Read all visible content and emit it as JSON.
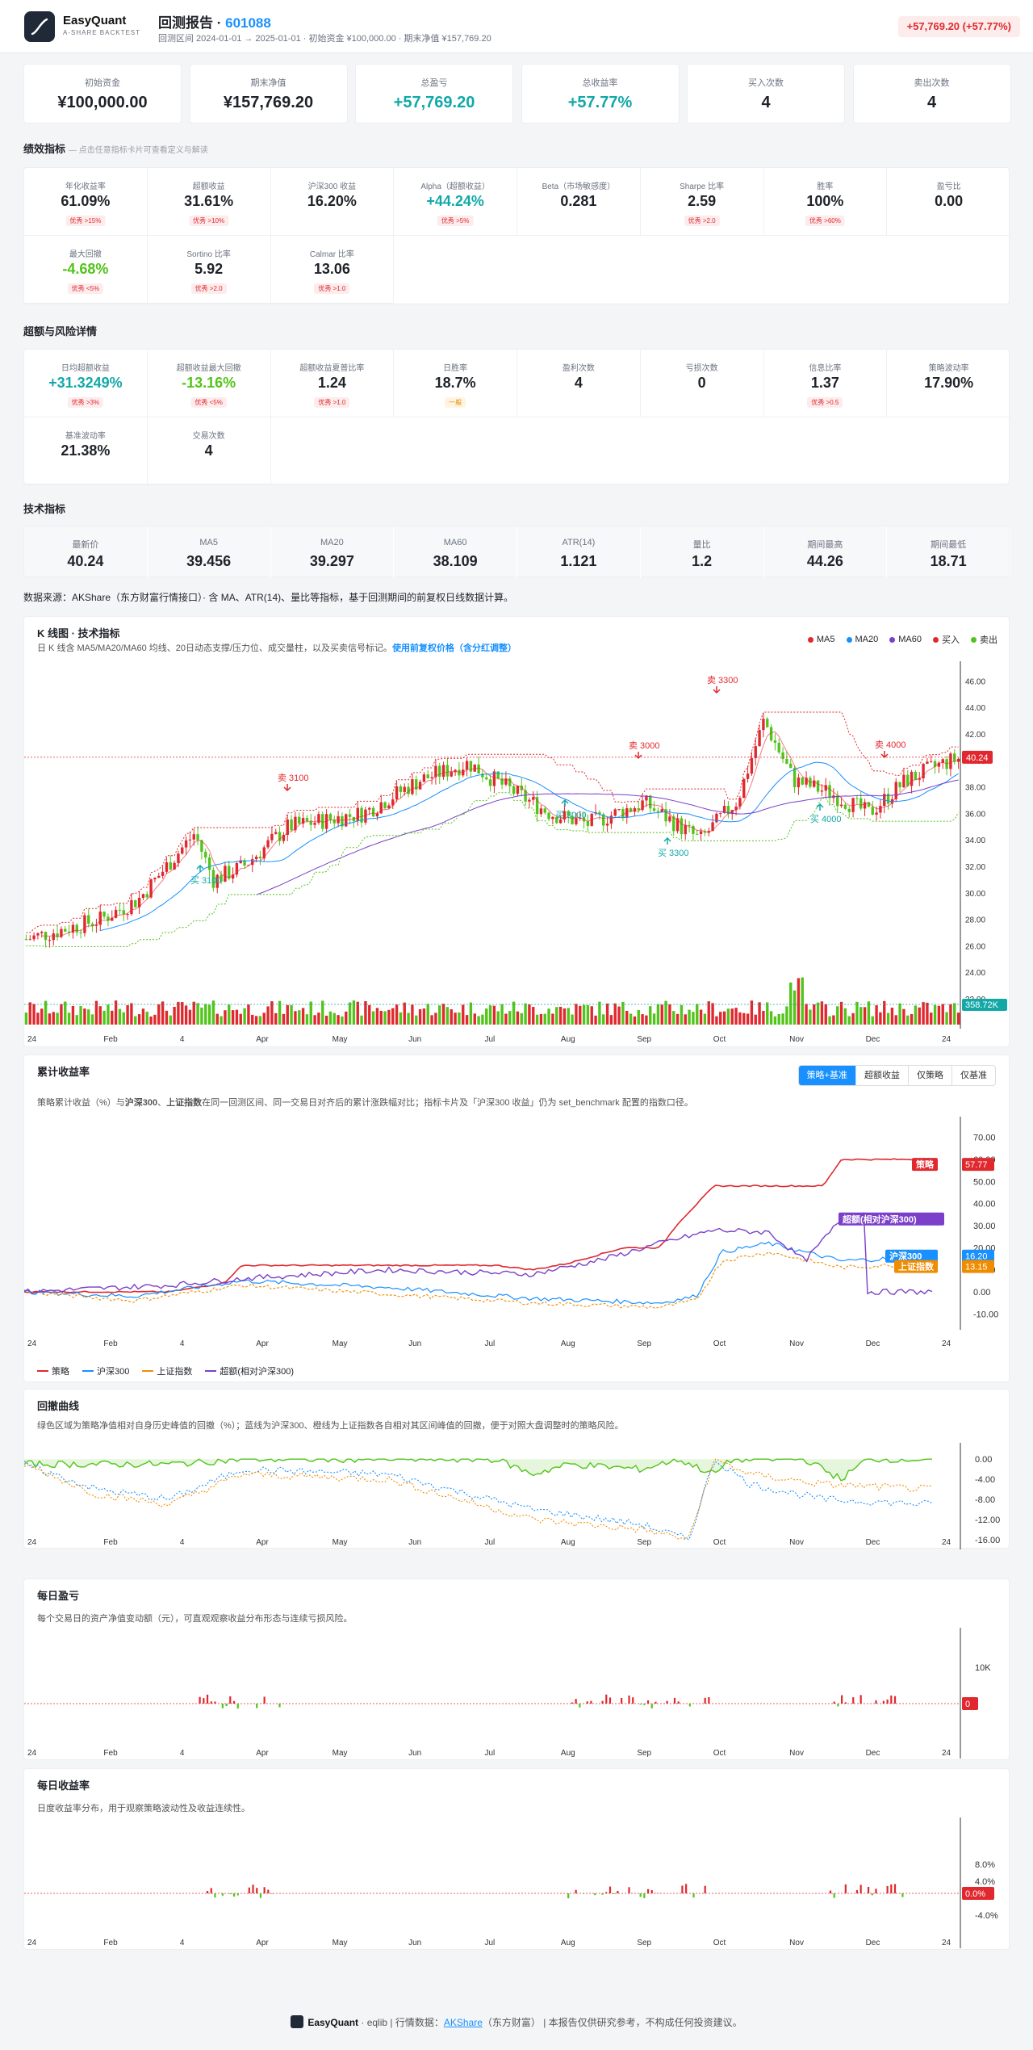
{
  "brand": {
    "name": "EasyQuant",
    "sub": "A-SHARE BACKTEST"
  },
  "report": {
    "title_prefix": "回测报告 · ",
    "code": "601088",
    "subtitle": "回测区间 2024-01-01 → 2025-01-01  ·  初始资金 ¥100,000.00  ·  期末净值 ¥157,769.20",
    "pnl_pill": "+57,769.20 (+57.77%)"
  },
  "summary": [
    {
      "label": "初始资金",
      "value": "¥100,000.00"
    },
    {
      "label": "期末净值",
      "value": "¥157,769.20"
    },
    {
      "label": "总盈亏",
      "value": "+57,769.20"
    },
    {
      "label": "总收益率",
      "value": "+57.77%"
    },
    {
      "label": "买入次数",
      "value": "4"
    },
    {
      "label": "卖出次数",
      "value": "4"
    }
  ],
  "perf": {
    "title": "绩效指标",
    "hint": "— 点击任意指标卡片可查看定义与解读",
    "items": [
      {
        "label": "年化收益率",
        "value": "61.09%",
        "badge": "优秀 >15%"
      },
      {
        "label": "超额收益",
        "value": "31.61%",
        "badge": "优秀 >10%"
      },
      {
        "label": "沪深300 收益",
        "value": "16.20%",
        "badge": ""
      },
      {
        "label": "Alpha（超额收益）",
        "value": "+44.24%",
        "badge": "优秀 >5%"
      },
      {
        "label": "Beta（市场敏感度）",
        "value": "0.281",
        "badge": ""
      },
      {
        "label": "Sharpe 比率",
        "value": "2.59",
        "badge": "优秀 >2.0"
      },
      {
        "label": "胜率",
        "value": "100%",
        "badge": "优秀 >60%"
      },
      {
        "label": "盈亏比",
        "value": "0.00",
        "badge": ""
      },
      {
        "label": "最大回撤",
        "value": "-4.68%",
        "badge": "优秀 <5%"
      },
      {
        "label": "Sortino 比率",
        "value": "5.92",
        "badge": "优秀 >2.0"
      },
      {
        "label": "Calmar 比率",
        "value": "13.06",
        "badge": "优秀 >1.0"
      }
    ]
  },
  "risk": {
    "title": "超额与风险详情",
    "items": [
      {
        "label": "日均超额收益",
        "value": "+31.3249%",
        "badge": "优秀 >3%"
      },
      {
        "label": "超额收益最大回撤",
        "value": "-13.16%",
        "badge": "优秀 <5%"
      },
      {
        "label": "超额收益夏普比率",
        "value": "1.24",
        "badge": "优秀 >1.0"
      },
      {
        "label": "日胜率",
        "value": "18.7%",
        "badge": "一般"
      },
      {
        "label": "盈利次数",
        "value": "4",
        "badge": ""
      },
      {
        "label": "亏损次数",
        "value": "0",
        "badge": ""
      },
      {
        "label": "信息比率",
        "value": "1.37",
        "badge": "优秀 >0.5"
      },
      {
        "label": "策略波动率",
        "value": "17.90%",
        "badge": ""
      },
      {
        "label": "基准波动率",
        "value": "21.38%",
        "badge": ""
      },
      {
        "label": "交易次数",
        "value": "4",
        "badge": ""
      }
    ]
  },
  "tech": {
    "title": "技术指标",
    "items": [
      {
        "label": "最新价",
        "value": "40.24"
      },
      {
        "label": "MA5",
        "value": "39.456"
      },
      {
        "label": "MA20",
        "value": "39.297"
      },
      {
        "label": "MA60",
        "value": "38.109"
      },
      {
        "label": "ATR(14)",
        "value": "1.121"
      },
      {
        "label": "量比",
        "value": "1.2"
      },
      {
        "label": "期间最高",
        "value": "44.26"
      },
      {
        "label": "期间最低",
        "value": "18.71"
      }
    ]
  },
  "source_note": "数据来源：AKShare（东方财富行情接口）· 含 MA、ATR(14)、量比等指标，基于回测期间的前复权日线数据计算。",
  "kline": {
    "title": "K 线图 · 技术指标",
    "desc": "日 K 线含 MA5/MA20/MA60 均线、20日动态支撑/压力位、成交量柱，以及买卖信号标记。",
    "desc_link": "使用前复权价格（含分红调整）",
    "legend": [
      {
        "name": "MA5",
        "color": "#e0282e"
      },
      {
        "name": "MA20",
        "color": "#1890ff"
      },
      {
        "name": "MA60",
        "color": "#7b3fc9"
      },
      {
        "name": "买入",
        "color": "#e0282e"
      },
      {
        "name": "卖出",
        "color": "#52c41a"
      }
    ],
    "yticks": [
      "46.00",
      "44.00",
      "42.00",
      "40.00",
      "38.00",
      "36.00",
      "34.00",
      "32.00",
      "30.00",
      "28.00",
      "26.00",
      "24.00",
      "22.00"
    ],
    "xticks": [
      "24",
      "Feb",
      "4",
      "Apr",
      "May",
      "Jun",
      "Jul",
      "Aug",
      "Sep",
      "Oct",
      "Nov",
      "Dec",
      "24"
    ],
    "last_price": "40.24",
    "last_volume": "358.72K",
    "signals": [
      {
        "text": "卖 3300",
        "kind": "sell"
      },
      {
        "text": "卖 3000",
        "kind": "sell"
      },
      {
        "text": "卖 3100",
        "kind": "sell"
      },
      {
        "text": "卖 4000",
        "kind": "sell"
      },
      {
        "text": "买 3100",
        "kind": "buy"
      },
      {
        "text": "买 3000",
        "kind": "buy"
      },
      {
        "text": "买 3300",
        "kind": "buy"
      },
      {
        "text": "买 4000",
        "kind": "buy"
      }
    ]
  },
  "cum": {
    "title": "累计收益率",
    "tabs": [
      "策略+基准",
      "超额收益",
      "仅策略",
      "仅基准"
    ],
    "desc_pre": "策略累计收益（%）与",
    "desc_b1": "沪深300",
    "desc_mid": "、",
    "desc_b2": "上证指数",
    "desc_post": "在同一回测区间、同一交易日对齐后的累计涨跌幅对比；指标卡片及「沪深300 收益」仍为 set_benchmark 配置的指数口径。",
    "yticks": [
      "70.00",
      "60.00",
      "50.00",
      "40.00",
      "30.00",
      "20.00",
      "10.00",
      "0.00",
      "-10.00"
    ],
    "xticks": [
      "24",
      "Feb",
      "4",
      "Apr",
      "May",
      "Jun",
      "Jul",
      "Aug",
      "Sep",
      "Oct",
      "Nov",
      "Dec",
      "24"
    ],
    "labels": [
      {
        "name": "策略",
        "value": "57.77",
        "color": "#e0282e"
      },
      {
        "name": "超额(相对沪深300)",
        "value": "",
        "color": "#7b3fc9"
      },
      {
        "name": "沪深300",
        "value": "16.20",
        "color": "#1890ff"
      },
      {
        "name": "上证指数",
        "value": "13.15",
        "color": "#f08c00"
      }
    ],
    "legend": [
      {
        "name": "策略",
        "color": "#e0282e"
      },
      {
        "name": "沪深300",
        "color": "#1890ff"
      },
      {
        "name": "上证指数",
        "color": "#f08c00"
      },
      {
        "name": "超额(相对沪深300)",
        "color": "#7b3fc9"
      }
    ]
  },
  "drawdown": {
    "title": "回撤曲线",
    "desc": "绿色区域为策略净值相对自身历史峰值的回撤（%）；蓝线为沪深300、橙线为上证指数各自相对其区间峰值的回撤，便于对照大盘调整时的策略风险。",
    "yticks": [
      "0.00",
      "-4.00",
      "-8.00",
      "-12.00",
      "-16.00"
    ],
    "xticks": [
      "24",
      "Feb",
      "4",
      "Apr",
      "May",
      "Jun",
      "Jul",
      "Aug",
      "Sep",
      "Oct",
      "Nov",
      "Dec",
      "24"
    ]
  },
  "daily_pnl": {
    "title": "每日盈亏",
    "desc": "每个交易日的资产净值变动额（元），可直观观察收益分布形态与连续亏损风险。",
    "yticks": [
      "10K"
    ],
    "zero": "0",
    "xticks": [
      "24",
      "Feb",
      "4",
      "Apr",
      "May",
      "Jun",
      "Jul",
      "Aug",
      "Sep",
      "Oct",
      "Nov",
      "Dec",
      "24"
    ]
  },
  "daily_ret": {
    "title": "每日收益率",
    "desc": "日度收益率分布，用于观察策略波动性及收益连续性。",
    "yticks": [
      "8.0%",
      "4.0%",
      "-4.0%"
    ],
    "zero": "0.0%",
    "xticks": [
      "24",
      "Feb",
      "4",
      "Apr",
      "May",
      "Jun",
      "Jul",
      "Aug",
      "Sep",
      "Oct",
      "Nov",
      "Dec",
      "24"
    ]
  },
  "footer": {
    "brand": "EasyQuant",
    "sep1": " · eqlib  |  行情数据：",
    "link": "AKShare",
    "post": "（东方财富） |  本报告仅供研究参考，不构成任何投资建议。"
  },
  "colors": {
    "up": "#e0282e",
    "down": "#52c41a",
    "accent": "#1890ff",
    "profit": "#13a8a8"
  }
}
